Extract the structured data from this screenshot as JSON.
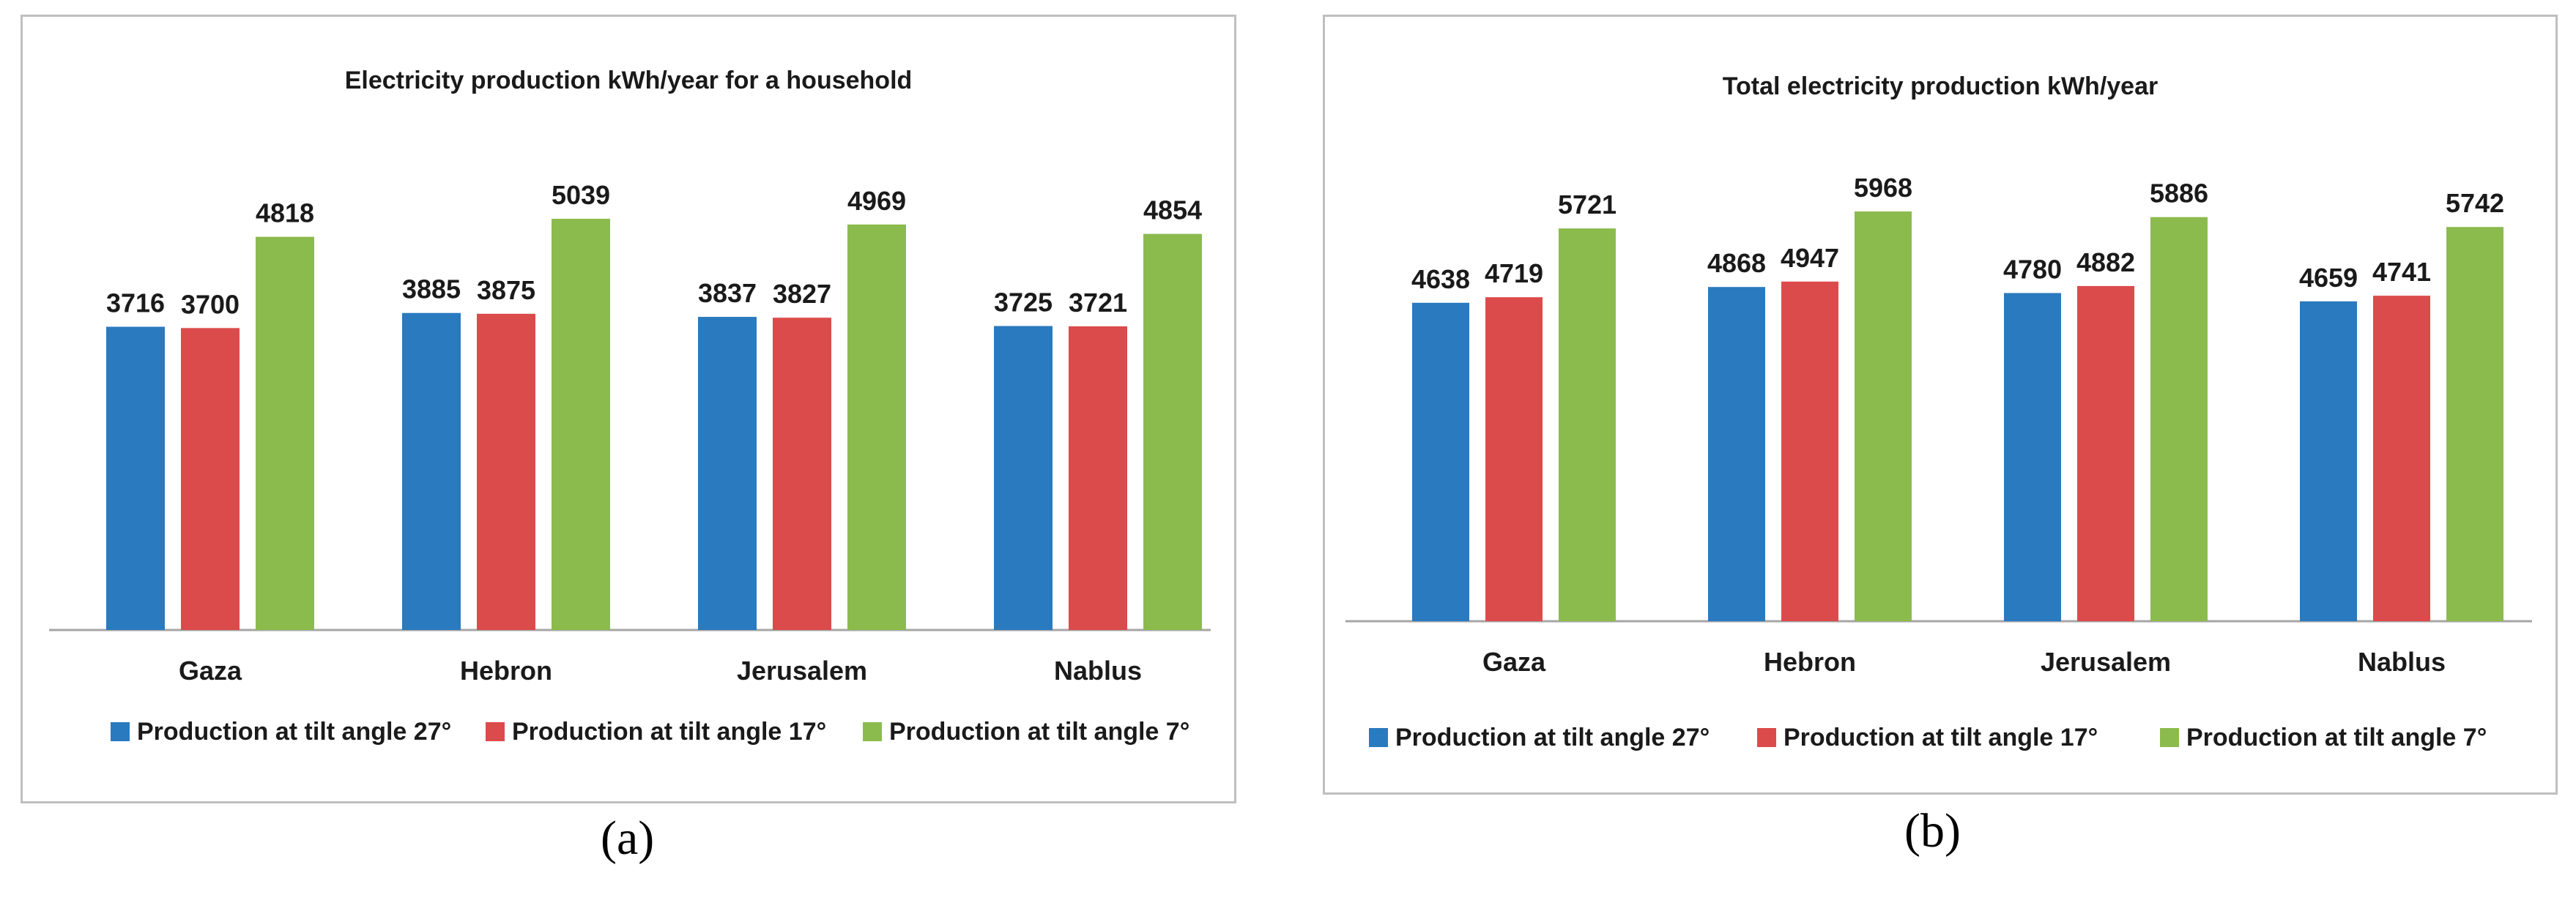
{
  "captions": {
    "a": "(a)",
    "b": "(b)"
  },
  "chart_data": [
    {
      "type": "bar",
      "title": "Electricity production  kWh/year for a household",
      "categories": [
        "Gaza",
        "Hebron",
        "Jerusalem",
        "Nablus"
      ],
      "series": [
        {
          "name": "Production at tilt angle 27°",
          "color": "#2a7abf",
          "values": [
            3716,
            3885,
            3837,
            3725
          ]
        },
        {
          "name": "Production at tilt angle 17°",
          "color": "#dc4b4b",
          "values": [
            3700,
            3875,
            3827,
            3721
          ]
        },
        {
          "name": "Production at tilt angle 7°",
          "color": "#8cbb4d",
          "values": [
            4818,
            5039,
            4969,
            4854
          ]
        }
      ],
      "ylim": [
        0,
        5039
      ],
      "grid": false,
      "legend": "bottom"
    },
    {
      "type": "bar",
      "title": "Total electricity production kWh/year",
      "categories": [
        "Gaza",
        "Hebron",
        "Jerusalem",
        "Nablus"
      ],
      "series": [
        {
          "name": "Production at tilt angle 27°",
          "color": "#2a7abf",
          "values": [
            4638,
            4868,
            4780,
            4659
          ]
        },
        {
          "name": "Production at tilt angle 17°",
          "color": "#dc4b4b",
          "values": [
            4719,
            4947,
            4882,
            4741
          ]
        },
        {
          "name": "Production at tilt angle 7°",
          "color": "#8cbb4d",
          "values": [
            5721,
            5968,
            5886,
            5742
          ]
        }
      ],
      "ylim": [
        0,
        5968
      ],
      "grid": false,
      "legend": "bottom"
    }
  ]
}
